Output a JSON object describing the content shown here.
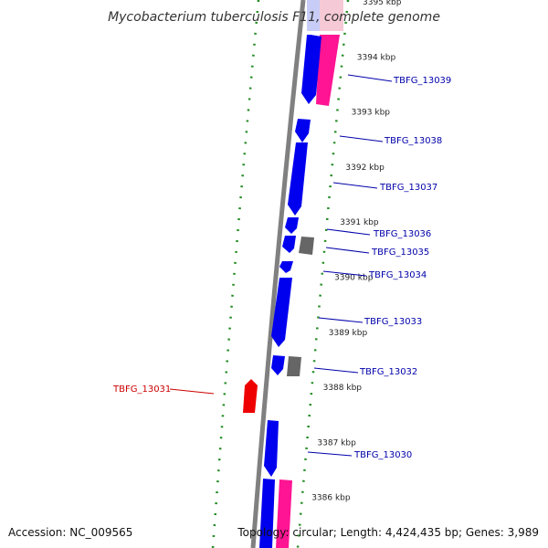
{
  "title": "Mycobacterium tuberculosis F11, complete genome",
  "accession": "Accession: NC_009565",
  "topology": "Topology: circular; Length: 4,424,435 bp; Genes: 3,989",
  "colors": {
    "backbone": "#808080",
    "gene_forward": "#0000ee",
    "gene_reverse": "#ee0000",
    "rna": "#ff1493",
    "pseudo": "#666666",
    "gc_ticks": "#228b22",
    "label_forward": "#0000aa",
    "label_reverse": "#cc0000"
  },
  "kbp_ticks": [
    {
      "label": "3395 kbp",
      "pos": 3395
    },
    {
      "label": "3394 kbp",
      "pos": 3394
    },
    {
      "label": "3393 kbp",
      "pos": 3393
    },
    {
      "label": "3392 kbp",
      "pos": 3392
    },
    {
      "label": "3391 kbp",
      "pos": 3391
    },
    {
      "label": "3390 kbp",
      "pos": 3390
    },
    {
      "label": "3389 kbp",
      "pos": 3389
    },
    {
      "label": "3388 kbp",
      "pos": 3388
    },
    {
      "label": "3387 kbp",
      "pos": 3387
    },
    {
      "label": "3386 kbp",
      "pos": 3386
    }
  ],
  "gene_labels": [
    {
      "id": "g13039",
      "label": "TBFG_13039",
      "strand": "+"
    },
    {
      "id": "g13038",
      "label": "TBFG_13038",
      "strand": "+"
    },
    {
      "id": "g13037",
      "label": "TBFG_13037",
      "strand": "+"
    },
    {
      "id": "g13036",
      "label": "TBFG_13036",
      "strand": "+"
    },
    {
      "id": "g13035",
      "label": "TBFG_13035",
      "strand": "+"
    },
    {
      "id": "g13034",
      "label": "TBFG_13034",
      "strand": "+"
    },
    {
      "id": "g13033",
      "label": "TBFG_13033",
      "strand": "+"
    },
    {
      "id": "g13032",
      "label": "TBFG_13032",
      "strand": "+"
    },
    {
      "id": "g13031",
      "label": "TBFG_13031",
      "strand": "-"
    },
    {
      "id": "g13030",
      "label": "TBFG_13030",
      "strand": "+"
    }
  ]
}
